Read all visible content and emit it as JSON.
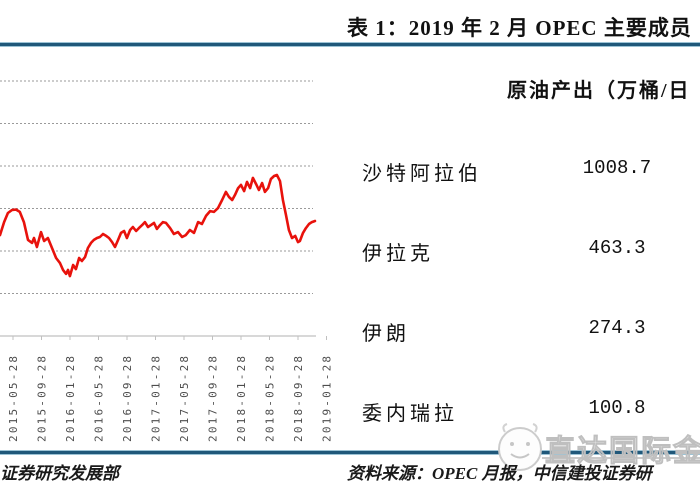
{
  "page": {
    "title": "表 1：2019 年 2 月 OPEC 主要成员"
  },
  "table": {
    "header": "原油产出（万桶/日",
    "rows": [
      {
        "label": "沙特阿拉伯",
        "value": "1008.7"
      },
      {
        "label": "伊拉克",
        "value": "463.3"
      },
      {
        "label": "伊朗",
        "value": "274.3"
      },
      {
        "label": "委内瑞拉",
        "value": "100.8"
      }
    ]
  },
  "footer": {
    "left_source": "证券研究发展部",
    "right_source": "资料来源：OPEC 月报，中信建投证券研"
  },
  "watermark": {
    "text": "直达国际金",
    "logo": "mascot-circle-logo"
  },
  "colors": {
    "accent_navy": "#20587a",
    "line_red": "#e8120c",
    "grid_gray": "#9a9a9a",
    "axis_gray": "#c0c0c0",
    "tick_text": "#4d4d4d",
    "watermark_gray": "#bfbfbf"
  },
  "chart_data": {
    "type": "line",
    "title": "",
    "xlabel": "",
    "ylabel": "",
    "legend": false,
    "grid": true,
    "y_axis_note": "y-axis tick labels are cropped out of the screenshot; price values estimated from gridlines (one gridline every 20 units, axis at 0)",
    "ylim": [
      0,
      132
    ],
    "gridline_values": [
      20,
      40,
      60,
      80,
      100,
      120
    ],
    "x_tick_labels": [
      "2015-05-28",
      "2015-09-28",
      "2016-01-28",
      "2016-05-28",
      "2016-09-28",
      "2017-01-28",
      "2017-05-28",
      "2017-09-28",
      "2018-01-28",
      "2018-05-28",
      "2018-09-28",
      "2019-01-28"
    ],
    "series": [
      {
        "name": "oil-price",
        "color": "#e8120c",
        "points": [
          [
            0.0,
            47.5
          ],
          [
            0.013,
            53.6
          ],
          [
            0.025,
            57.9
          ],
          [
            0.038,
            59.3
          ],
          [
            0.051,
            59.5
          ],
          [
            0.063,
            58.4
          ],
          [
            0.076,
            53.6
          ],
          [
            0.089,
            45.2
          ],
          [
            0.102,
            43.8
          ],
          [
            0.108,
            46.1
          ],
          [
            0.117,
            41.9
          ],
          [
            0.13,
            48.9
          ],
          [
            0.14,
            44.7
          ],
          [
            0.152,
            46.1
          ],
          [
            0.165,
            41.4
          ],
          [
            0.178,
            36.7
          ],
          [
            0.19,
            34.4
          ],
          [
            0.2,
            31.1
          ],
          [
            0.21,
            29.2
          ],
          [
            0.216,
            31.1
          ],
          [
            0.222,
            28.2
          ],
          [
            0.232,
            33.4
          ],
          [
            0.241,
            31.5
          ],
          [
            0.251,
            36.7
          ],
          [
            0.26,
            35.3
          ],
          [
            0.27,
            37.2
          ],
          [
            0.279,
            41.4
          ],
          [
            0.289,
            43.8
          ],
          [
            0.298,
            45.2
          ],
          [
            0.308,
            46.1
          ],
          [
            0.317,
            46.6
          ],
          [
            0.327,
            48.0
          ],
          [
            0.337,
            47.1
          ],
          [
            0.346,
            46.1
          ],
          [
            0.356,
            44.2
          ],
          [
            0.365,
            41.9
          ],
          [
            0.375,
            45.2
          ],
          [
            0.384,
            48.5
          ],
          [
            0.394,
            49.4
          ],
          [
            0.403,
            46.1
          ],
          [
            0.413,
            49.9
          ],
          [
            0.422,
            51.3
          ],
          [
            0.432,
            49.4
          ],
          [
            0.441,
            50.8
          ],
          [
            0.451,
            52.2
          ],
          [
            0.46,
            53.6
          ],
          [
            0.47,
            51.3
          ],
          [
            0.479,
            52.2
          ],
          [
            0.489,
            53.2
          ],
          [
            0.498,
            50.4
          ],
          [
            0.508,
            52.2
          ],
          [
            0.517,
            53.6
          ],
          [
            0.527,
            53.2
          ],
          [
            0.54,
            50.8
          ],
          [
            0.552,
            48.0
          ],
          [
            0.565,
            48.9
          ],
          [
            0.578,
            46.6
          ],
          [
            0.59,
            47.5
          ],
          [
            0.603,
            49.9
          ],
          [
            0.616,
            48.5
          ],
          [
            0.629,
            53.6
          ],
          [
            0.641,
            52.7
          ],
          [
            0.654,
            56.5
          ],
          [
            0.667,
            58.8
          ],
          [
            0.679,
            58.4
          ],
          [
            0.692,
            60.2
          ],
          [
            0.705,
            64.0
          ],
          [
            0.717,
            67.8
          ],
          [
            0.727,
            65.4
          ],
          [
            0.737,
            64.0
          ],
          [
            0.746,
            66.4
          ],
          [
            0.756,
            69.6
          ],
          [
            0.765,
            71.1
          ],
          [
            0.775,
            68.2
          ],
          [
            0.784,
            72.5
          ],
          [
            0.794,
            69.6
          ],
          [
            0.803,
            74.4
          ],
          [
            0.813,
            71.5
          ],
          [
            0.822,
            68.7
          ],
          [
            0.832,
            72.0
          ],
          [
            0.841,
            67.8
          ],
          [
            0.851,
            69.6
          ],
          [
            0.86,
            73.9
          ],
          [
            0.87,
            75.3
          ],
          [
            0.879,
            75.8
          ],
          [
            0.889,
            72.9
          ],
          [
            0.898,
            64.0
          ],
          [
            0.908,
            56.9
          ],
          [
            0.917,
            49.9
          ],
          [
            0.927,
            46.1
          ],
          [
            0.937,
            47.1
          ],
          [
            0.946,
            44.2
          ],
          [
            0.952,
            44.7
          ],
          [
            0.962,
            48.5
          ],
          [
            0.971,
            50.8
          ],
          [
            0.981,
            52.7
          ],
          [
            0.99,
            53.6
          ],
          [
            1.0,
            54.1
          ]
        ]
      }
    ]
  }
}
